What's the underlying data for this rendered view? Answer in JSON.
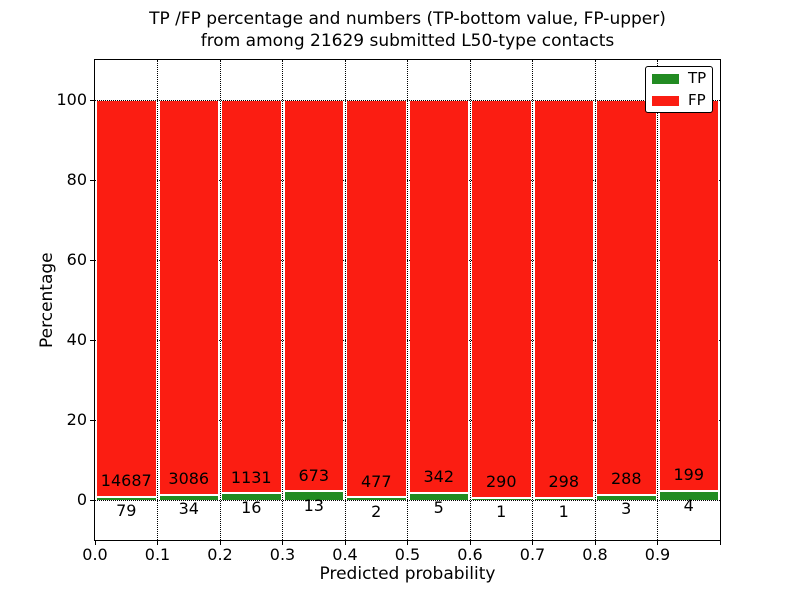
{
  "figure": {
    "background": "#ffffff",
    "text_color": "#000000"
  },
  "chart_data": {
    "type": "bar",
    "subtype": "stacked-percentage-histogram",
    "title": "TP /FP percentage and numbers (TP-bottom value, FP-upper) from among 21629 submitted L50-type contacts",
    "title_lines": [
      "TP /FP percentage and numbers (TP-bottom value, FP-upper)",
      "from among 21629 submitted L50-type contacts"
    ],
    "total_submitted_contacts": 21629,
    "xlabel": "Predicted probability",
    "ylabel": "Percentage",
    "bin_starts": [
      0.0,
      0.1,
      0.2,
      0.3,
      0.4,
      0.5,
      0.6,
      0.7,
      0.8,
      0.9
    ],
    "bin_width": 0.1,
    "series": [
      {
        "name": "TP",
        "color": "#228b22",
        "counts": [
          79,
          34,
          16,
          13,
          2,
          5,
          1,
          1,
          3,
          4
        ]
      },
      {
        "name": "FP",
        "color": "#fb1d12",
        "counts": [
          14687,
          3086,
          1131,
          673,
          477,
          342,
          290,
          298,
          288,
          199
        ]
      }
    ],
    "bars_normalized_to_percent": 100,
    "xticks": [
      "0.0",
      "0.1",
      "0.2",
      "0.3",
      "0.4",
      "0.5",
      "0.6",
      "0.7",
      "0.8",
      "0.9"
    ],
    "yticks": [
      0,
      20,
      40,
      60,
      80,
      100
    ],
    "xlim": [
      0.0,
      1.0
    ],
    "ylim": [
      -10,
      110
    ],
    "grid": "dotted",
    "bar_edge_color": "#ffffff",
    "legend": {
      "position": "upper right",
      "entries": [
        {
          "label": "TP",
          "color": "#228b22"
        },
        {
          "label": "FP",
          "color": "#fb1d12"
        }
      ]
    }
  }
}
